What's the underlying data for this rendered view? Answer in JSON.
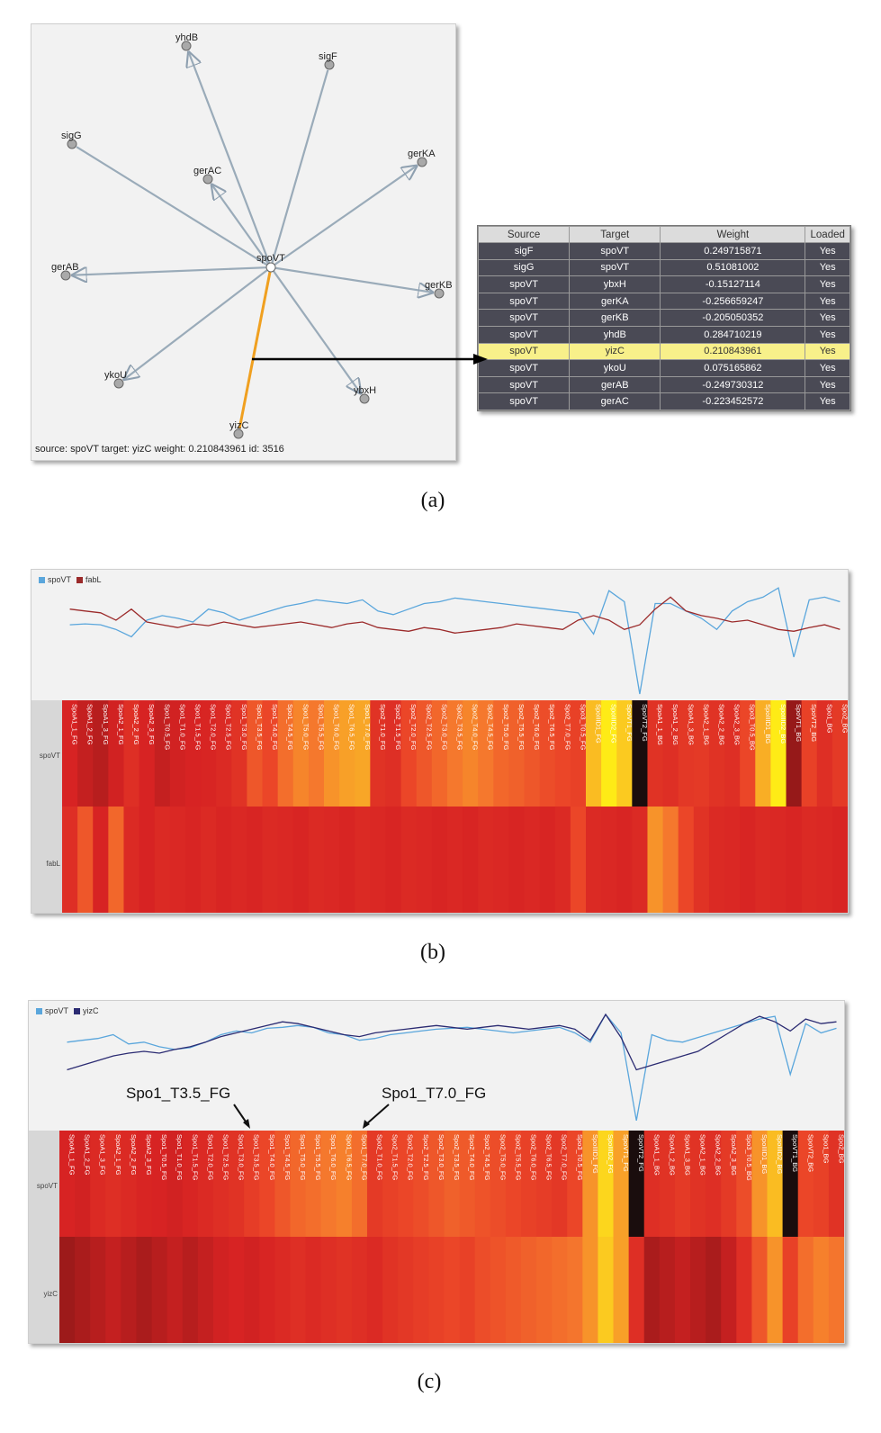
{
  "panel_a": {
    "caption": "(a)",
    "center": "spoVT",
    "nodes": [
      "yhdB",
      "sigF",
      "sigG",
      "gerAC",
      "gerKA",
      "gerAB",
      "gerKB",
      "ykoU",
      "ybxH",
      "yizC"
    ],
    "status": "source: spoVT target: yizC weight: 0.210843961 id: 3516",
    "table": {
      "headers": [
        "Source",
        "Target",
        "Weight",
        "Loaded"
      ],
      "rows": [
        [
          "sigF",
          "spoVT",
          "0.249715871",
          "Yes"
        ],
        [
          "sigG",
          "spoVT",
          "0.51081002",
          "Yes"
        ],
        [
          "spoVT",
          "ybxH",
          "-0.15127114",
          "Yes"
        ],
        [
          "spoVT",
          "gerKA",
          "-0.256659247",
          "Yes"
        ],
        [
          "spoVT",
          "gerKB",
          "-0.205050352",
          "Yes"
        ],
        [
          "spoVT",
          "yhdB",
          "0.284710219",
          "Yes"
        ],
        [
          "spoVT",
          "yizC",
          "0.210843961",
          "Yes"
        ],
        [
          "spoVT",
          "ykoU",
          "0.075165862",
          "Yes"
        ],
        [
          "spoVT",
          "gerAB",
          "-0.249730312",
          "Yes"
        ],
        [
          "spoVT",
          "gerAC",
          "-0.223452572",
          "Yes"
        ]
      ],
      "selected_row": 6
    }
  },
  "panel_b": {
    "caption": "(b)",
    "legend": [
      {
        "name": "spoVT",
        "color": "#5aa6dc"
      },
      {
        "name": "fabL",
        "color": "#9b2a2a"
      }
    ],
    "row_labels": [
      "spoVT",
      "fabL"
    ],
    "columns": [
      "SpoA1_1_FG",
      "SpoA1_2_FG",
      "SpoA1_3_FG",
      "SpoA2_1_FG",
      "SpoA2_2_FG",
      "SpoA2_3_FG",
      "Spo1_T0.5_FG",
      "Spo1_T1.0_FG",
      "Spo1_T1.5_FG",
      "Spo1_T2.0_FG",
      "Spo1_T2.5_FG",
      "Spo1_T3.0_FG",
      "Spo1_T3.5_FG",
      "Spo1_T4.0_FG",
      "Spo1_T4.5_FG",
      "Spo1_T5.0_FG",
      "Spo1_T5.5_FG",
      "Spo1_T6.0_FG",
      "Spo1_T6.5_FG",
      "Spo1_T7.0_FG",
      "Spo2_T1.0_FG",
      "Spo2_T1.5_FG",
      "Spo2_T2.0_FG",
      "Spo2_T2.5_FG",
      "Spo2_T3.0_FG",
      "Spo2_T3.5_FG",
      "Spo2_T4.0_FG",
      "Spo2_T4.5_FG",
      "Spo2_T5.0_FG",
      "Spo2_T5.5_FG",
      "Spo2_T6.0_FG",
      "Spo2_T6.5_FG",
      "Spo2_T7.0_FG",
      "Spo3_T0.5_FG",
      "SpoIIID1_FG",
      "SpoIIID2_FG",
      "SpoVT1_FG",
      "SpoVT2_FG",
      "SpoA1_1_BG",
      "SpoA1_2_BG",
      "SpoA1_3_BG",
      "SpoA2_1_BG",
      "SpoA2_2_BG",
      "SpoA2_3_BG",
      "Spo3_T0.5_BG",
      "SpoIIID1_BG",
      "SpoIIID2_BG",
      "SpoVT1_BG",
      "SpoVT2_BG",
      "Spo1_BG",
      "Spo2_BG"
    ],
    "heat_top": [
      0.15,
      0.12,
      0.1,
      0.14,
      0.2,
      0.15,
      0.12,
      0.14,
      0.15,
      0.16,
      0.18,
      0.22,
      0.35,
      0.3,
      0.42,
      0.5,
      0.45,
      0.55,
      0.6,
      0.62,
      0.22,
      0.2,
      0.3,
      0.35,
      0.4,
      0.45,
      0.5,
      0.45,
      0.4,
      0.38,
      0.35,
      0.32,
      0.3,
      0.28,
      0.7,
      0.92,
      0.75,
      0.0,
      0.22,
      0.2,
      0.24,
      0.25,
      0.22,
      0.2,
      0.3,
      0.65,
      0.92,
      0.05,
      0.28,
      0.2,
      0.25
    ],
    "heat_bottom": [
      0.2,
      0.35,
      0.15,
      0.4,
      0.18,
      0.15,
      0.18,
      0.17,
      0.16,
      0.18,
      0.16,
      0.17,
      0.16,
      0.18,
      0.17,
      0.16,
      0.18,
      0.17,
      0.16,
      0.18,
      0.17,
      0.16,
      0.18,
      0.17,
      0.16,
      0.17,
      0.16,
      0.18,
      0.17,
      0.16,
      0.17,
      0.16,
      0.18,
      0.3,
      0.18,
      0.17,
      0.16,
      0.18,
      0.55,
      0.45,
      0.3,
      0.22,
      0.18,
      0.17,
      0.16,
      0.18,
      0.17,
      0.16,
      0.18,
      0.17,
      0.16
    ],
    "line_top": [
      0.55,
      0.56,
      0.55,
      0.5,
      0.42,
      0.6,
      0.65,
      0.62,
      0.58,
      0.72,
      0.68,
      0.6,
      0.65,
      0.7,
      0.75,
      0.78,
      0.82,
      0.8,
      0.78,
      0.82,
      0.7,
      0.66,
      0.72,
      0.78,
      0.8,
      0.84,
      0.82,
      0.8,
      0.78,
      0.76,
      0.74,
      0.72,
      0.7,
      0.68,
      0.45,
      0.92,
      0.8,
      -0.2,
      0.78,
      0.78,
      0.7,
      0.62,
      0.5,
      0.7,
      0.8,
      0.85,
      0.95,
      0.2,
      0.82,
      0.85,
      0.8
    ],
    "line_bottom": [
      0.72,
      0.7,
      0.68,
      0.6,
      0.72,
      0.58,
      0.55,
      0.52,
      0.56,
      0.54,
      0.58,
      0.55,
      0.52,
      0.54,
      0.56,
      0.58,
      0.55,
      0.52,
      0.56,
      0.58,
      0.52,
      0.5,
      0.48,
      0.52,
      0.5,
      0.46,
      0.48,
      0.5,
      0.52,
      0.56,
      0.54,
      0.52,
      0.5,
      0.6,
      0.65,
      0.6,
      0.5,
      0.55,
      0.72,
      0.85,
      0.7,
      0.65,
      0.62,
      0.58,
      0.6,
      0.55,
      0.5,
      0.48,
      0.52,
      0.55,
      0.5
    ]
  },
  "panel_c": {
    "caption": "(c)",
    "legend": [
      {
        "name": "spoVT",
        "color": "#5aa6dc"
      },
      {
        "name": "yizC",
        "color": "#2b2b72"
      }
    ],
    "row_labels": [
      "spoVT",
      "yizC"
    ],
    "callouts": [
      {
        "text": "Spo1_T3.5_FG"
      },
      {
        "text": "Spo1_T7.0_FG"
      }
    ],
    "columns": [
      "SpoA1_1_FG",
      "SpoA1_2_FG",
      "SpoA1_3_FG",
      "SpoA2_1_FG",
      "SpoA2_2_FG",
      "SpoA2_3_FG",
      "Spo1_T0.5_FG",
      "Spo1_T1.0_FG",
      "Spo1_T1.5_FG",
      "Spo1_T2.0_FG",
      "Spo1_T2.5_FG",
      "Spo1_T3.0_FG",
      "Spo1_T3.5_FG",
      "Spo1_T4.0_FG",
      "Spo1_T4.5_FG",
      "Spo1_T5.0_FG",
      "Spo1_T5.5_FG",
      "Spo1_T6.0_FG",
      "Spo1_T6.5_FG",
      "Spo1_T7.0_FG",
      "Spo2_T1.0_FG",
      "Spo2_T1.5_FG",
      "Spo2_T2.0_FG",
      "Spo2_T2.5_FG",
      "Spo2_T3.0_FG",
      "Spo2_T3.5_FG",
      "Spo2_T4.0_FG",
      "Spo2_T4.5_FG",
      "Spo2_T5.0_FG",
      "Spo2_T5.5_FG",
      "Spo2_T6.0_FG",
      "Spo2_T6.5_FG",
      "Spo2_T7.0_FG",
      "Spo3_T0.5_FG",
      "SpoIIID1_FG",
      "SpoIIID2_FG",
      "SpoVT1_FG",
      "SpoVT2_FG",
      "SpoA1_1_BG",
      "SpoA1_2_BG",
      "SpoA1_3_BG",
      "SpoA2_1_BG",
      "SpoA2_2_BG",
      "SpoA2_3_BG",
      "Spo3_T0.5_BG",
      "SpoIIID1_BG",
      "SpoIIID2_BG",
      "SpoVT1_BG",
      "SpoVT2_BG",
      "Spo1_BG",
      "Spo2_BG"
    ],
    "heat_top": [
      0.15,
      0.14,
      0.18,
      0.2,
      0.18,
      0.16,
      0.15,
      0.14,
      0.16,
      0.18,
      0.2,
      0.22,
      0.26,
      0.3,
      0.35,
      0.4,
      0.42,
      0.45,
      0.48,
      0.42,
      0.25,
      0.28,
      0.3,
      0.32,
      0.35,
      0.38,
      0.36,
      0.34,
      0.32,
      0.3,
      0.28,
      0.26,
      0.24,
      0.3,
      0.55,
      0.8,
      0.6,
      0.0,
      0.2,
      0.22,
      0.25,
      0.22,
      0.2,
      0.25,
      0.32,
      0.55,
      0.7,
      0.02,
      0.3,
      0.28,
      0.22
    ],
    "heat_bottom": [
      0.06,
      0.08,
      0.1,
      0.12,
      0.1,
      0.08,
      0.1,
      0.12,
      0.1,
      0.12,
      0.14,
      0.15,
      0.14,
      0.16,
      0.18,
      0.2,
      0.18,
      0.2,
      0.22,
      0.2,
      0.18,
      0.22,
      0.24,
      0.26,
      0.28,
      0.3,
      0.28,
      0.32,
      0.34,
      0.36,
      0.38,
      0.4,
      0.42,
      0.44,
      0.55,
      0.75,
      0.6,
      0.2,
      0.08,
      0.1,
      0.12,
      0.1,
      0.08,
      0.12,
      0.2,
      0.35,
      0.55,
      0.28,
      0.42,
      0.48,
      0.44
    ],
    "line_top": [
      0.7,
      0.72,
      0.74,
      0.78,
      0.68,
      0.7,
      0.65,
      0.62,
      0.64,
      0.7,
      0.78,
      0.82,
      0.8,
      0.85,
      0.86,
      0.88,
      0.86,
      0.8,
      0.78,
      0.72,
      0.74,
      0.78,
      0.8,
      0.82,
      0.84,
      0.85,
      0.86,
      0.84,
      0.82,
      0.8,
      0.82,
      0.84,
      0.86,
      0.8,
      0.7,
      1.0,
      0.8,
      -0.15,
      0.78,
      0.72,
      0.7,
      0.75,
      0.8,
      0.85,
      0.9,
      0.95,
      0.98,
      0.35,
      0.9,
      0.8,
      0.85
    ],
    "line_bottom": [
      0.4,
      0.45,
      0.5,
      0.55,
      0.58,
      0.6,
      0.58,
      0.62,
      0.65,
      0.7,
      0.76,
      0.8,
      0.84,
      0.88,
      0.92,
      0.9,
      0.86,
      0.82,
      0.78,
      0.76,
      0.8,
      0.82,
      0.84,
      0.86,
      0.88,
      0.86,
      0.84,
      0.86,
      0.88,
      0.86,
      0.84,
      0.86,
      0.88,
      0.84,
      0.72,
      1.0,
      0.75,
      0.4,
      0.45,
      0.5,
      0.55,
      0.6,
      0.7,
      0.8,
      0.9,
      0.98,
      0.92,
      0.82,
      0.95,
      0.9,
      0.92
    ]
  }
}
